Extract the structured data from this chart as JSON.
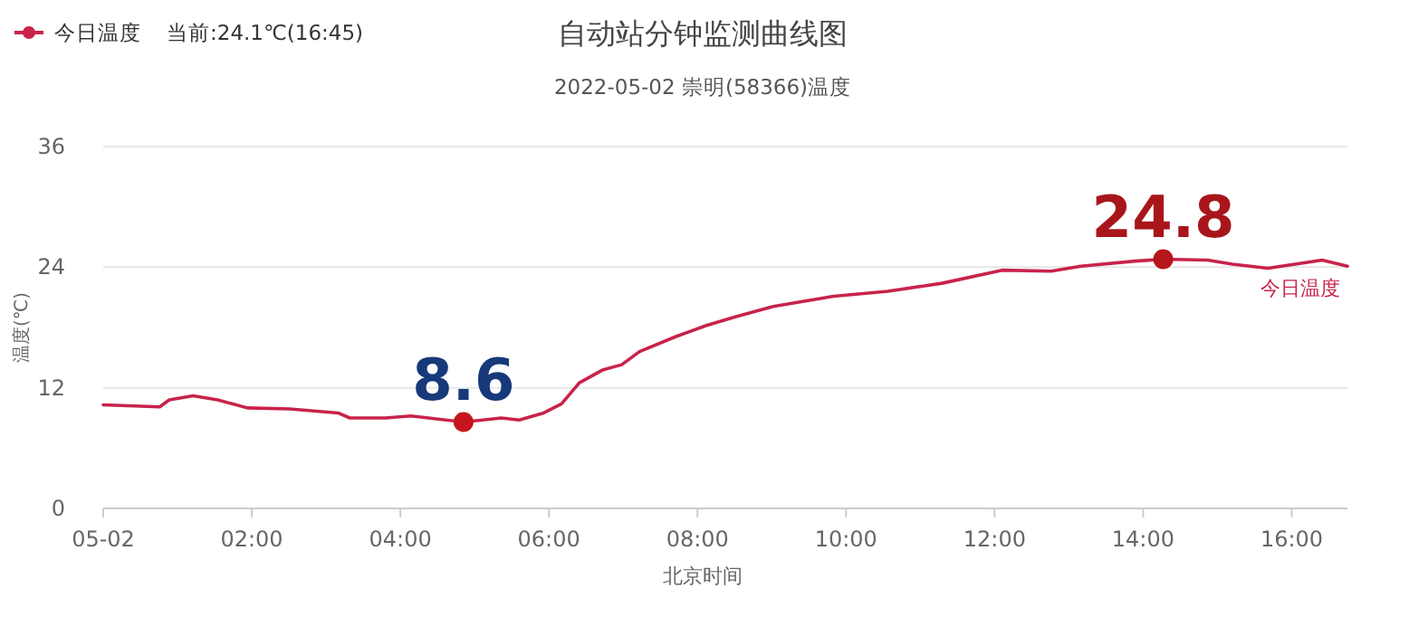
{
  "chart_data": {
    "type": "line",
    "title": "自动站分钟监测曲线图",
    "subtitle": "2022-05-02 崇明(58366)温度",
    "xlabel": "北京时间",
    "ylabel": "温度(℃)",
    "annotations": [
      "当前:24.1℃(16:45)",
      {
        "text": "8.6",
        "x": 4.85,
        "y": 8.6
      },
      {
        "text": "24.8",
        "x": 14.27,
        "y": 24.8
      }
    ],
    "xlim": [
      0,
      16.75
    ],
    "xticks": [
      {
        "value": 0,
        "label": "05-02"
      },
      {
        "value": 2,
        "label": "02:00"
      },
      {
        "value": 4,
        "label": "04:00"
      },
      {
        "value": 6,
        "label": "06:00"
      },
      {
        "value": 8,
        "label": "08:00"
      },
      {
        "value": 10,
        "label": "10:00"
      },
      {
        "value": 12,
        "label": "12:00"
      },
      {
        "value": 14,
        "label": "14:00"
      },
      {
        "value": 16,
        "label": "16:00"
      }
    ],
    "ylim": [
      0,
      36
    ],
    "yticks": [
      0,
      12,
      24,
      36
    ],
    "grid": "y",
    "legend": "top left",
    "marker": "none",
    "line_style": "solid",
    "series": [
      {
        "name": "今日温度",
        "color": "#c8234a",
        "x": [
          0,
          0.76,
          0.89,
          1.21,
          1.54,
          1.94,
          2.51,
          3.16,
          3.32,
          3.8,
          4.14,
          4.85,
          5.36,
          5.6,
          5.93,
          6.17,
          6.41,
          6.73,
          6.98,
          7.22,
          7.71,
          8.12,
          8.53,
          9.02,
          9.83,
          10.56,
          11.29,
          12.1,
          12.76,
          13.16,
          13.89,
          14.27,
          14.87,
          15.2,
          15.68,
          16.41,
          16.75
        ],
        "values": [
          10.3,
          10.1,
          10.8,
          11.2,
          10.8,
          10.0,
          9.9,
          9.5,
          9.0,
          9.0,
          9.2,
          8.6,
          9.0,
          8.8,
          9.5,
          10.4,
          12.5,
          13.8,
          14.3,
          15.6,
          17.1,
          18.2,
          19.1,
          20.1,
          21.1,
          21.6,
          22.4,
          23.7,
          23.6,
          24.1,
          24.6,
          24.8,
          24.7,
          24.3,
          23.9,
          24.7,
          24.1
        ]
      }
    ]
  }
}
